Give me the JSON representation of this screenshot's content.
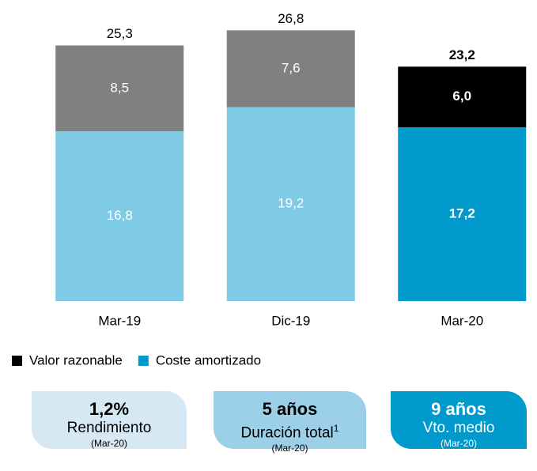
{
  "chart_data": {
    "type": "stacked_bar",
    "categories": [
      "Mar-19",
      "Dic-19",
      "Mar-20"
    ],
    "series": [
      {
        "name": "Coste amortizado",
        "color": "#0099cc",
        "bar_colors": [
          "#7fcae5",
          "#7fcae5",
          "#0099cc"
        ],
        "values": [
          16.8,
          19.2,
          17.2
        ],
        "value_labels": [
          "16,8",
          "19,2",
          "17,2"
        ]
      },
      {
        "name": "Valor razonable",
        "color": "#000000",
        "bar_colors": [
          "#808080",
          "#808080",
          "#000000"
        ],
        "values": [
          8.5,
          7.6,
          6.0
        ],
        "value_labels": [
          "8,5",
          "7,6",
          "6,0"
        ]
      }
    ],
    "totals": [
      25.3,
      26.8,
      23.2
    ],
    "total_labels": [
      "25,3",
      "26,8",
      "23,2"
    ],
    "ylim": [
      0,
      28
    ]
  },
  "kpis": [
    {
      "value_text": "1,2%",
      "label": "Rendimiento",
      "note": "(Mar-20)"
    },
    {
      "value_text": "5 años",
      "label": "Duración total",
      "footnote_mark": "1",
      "note": "(Mar-20)"
    },
    {
      "value_text": "9 años",
      "label": "Vto. medio",
      "note": "(Mar-20)"
    }
  ]
}
